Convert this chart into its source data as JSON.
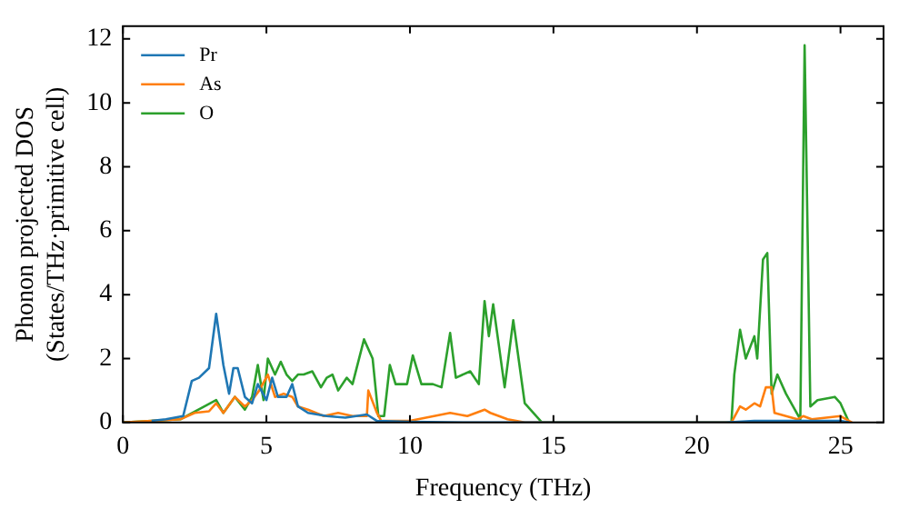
{
  "chart_data": {
    "type": "line",
    "xlabel": "Frequency (THz)",
    "ylabel": "Phonon projected DOS\n(States/THz·primitive cell)",
    "xlim": [
      0,
      26.5
    ],
    "ylim": [
      0,
      12.4
    ],
    "xticks": [
      0,
      5,
      10,
      15,
      20,
      25
    ],
    "yticks": [
      0,
      2,
      4,
      6,
      8,
      10,
      12
    ],
    "grid": false,
    "legend": "top left",
    "marker": "none",
    "line_style": "solid",
    "series": [
      {
        "name": "Pr",
        "color": "#1f77b4",
        "x": [
          1,
          1.5,
          2.1,
          2.4,
          2.65,
          3.0,
          3.25,
          3.5,
          3.7,
          3.85,
          4.0,
          4.25,
          4.5,
          4.7,
          5.0,
          5.2,
          5.4,
          5.7,
          5.9,
          6.1,
          6.45,
          7.1,
          7.75,
          8.5,
          8.85,
          10,
          12,
          21,
          22,
          23,
          24,
          25,
          25.3
        ],
        "values": [
          0.05,
          0.1,
          0.2,
          1.3,
          1.4,
          1.7,
          3.4,
          1.8,
          0.9,
          1.7,
          1.7,
          0.8,
          0.6,
          1.2,
          0.7,
          1.4,
          0.8,
          0.8,
          1.2,
          0.5,
          0.3,
          0.2,
          0.15,
          0.25,
          0.05,
          0.02,
          0,
          0,
          0.05,
          0.05,
          0.05,
          0.05,
          0
        ]
      },
      {
        "name": "As",
        "color": "#ff7f0e",
        "x": [
          0,
          2,
          2.5,
          3.0,
          3.25,
          3.5,
          3.9,
          4.25,
          4.5,
          4.75,
          5.05,
          5.3,
          5.6,
          5.9,
          6.1,
          6.45,
          7.0,
          7.5,
          8.0,
          8.5,
          8.55,
          8.85,
          9.0,
          10,
          11.4,
          12,
          12.6,
          12.8,
          13.4,
          14,
          21.2,
          21.5,
          21.7,
          22,
          22.2,
          22.4,
          22.6,
          22.7,
          23.5,
          23.7,
          24,
          25,
          25.4
        ],
        "values": [
          0,
          0.1,
          0.3,
          0.35,
          0.6,
          0.3,
          0.8,
          0.5,
          0.7,
          1.0,
          1.5,
          0.8,
          0.9,
          0.8,
          0.5,
          0.4,
          0.2,
          0.3,
          0.2,
          0.2,
          1.0,
          0.3,
          0.05,
          0.05,
          0.3,
          0.2,
          0.4,
          0.3,
          0.1,
          0,
          0,
          0.5,
          0.4,
          0.6,
          0.5,
          1.1,
          1.1,
          0.3,
          0.1,
          0.2,
          0.1,
          0.2,
          0
        ]
      },
      {
        "name": "O",
        "color": "#2ca02c",
        "x": [
          0,
          2,
          3.25,
          3.5,
          3.9,
          4.25,
          4.5,
          4.7,
          4.9,
          5.05,
          5.3,
          5.5,
          5.7,
          5.9,
          6.1,
          6.3,
          6.6,
          6.9,
          7.1,
          7.3,
          7.5,
          7.8,
          8.0,
          8.4,
          8.7,
          8.9,
          9.1,
          9.3,
          9.5,
          9.9,
          10.1,
          10.4,
          10.8,
          11.1,
          11.4,
          11.6,
          12.1,
          12.4,
          12.6,
          12.75,
          12.9,
          13.3,
          13.6,
          14,
          14.6,
          21.2,
          21.3,
          21.5,
          21.7,
          22.0,
          22.1,
          22.3,
          22.45,
          22.6,
          22.8,
          23.1,
          23.6,
          23.75,
          23.95,
          24.2,
          24.8,
          25.0,
          25.3
        ],
        "values": [
          0,
          0.1,
          0.7,
          0.3,
          0.8,
          0.4,
          0.8,
          1.8,
          0.7,
          2.0,
          1.5,
          1.9,
          1.5,
          1.3,
          1.5,
          1.5,
          1.6,
          1.1,
          1.4,
          1.5,
          1.0,
          1.4,
          1.2,
          2.6,
          2.0,
          0.2,
          0.2,
          1.8,
          1.2,
          1.2,
          2.1,
          1.2,
          1.2,
          1.1,
          2.8,
          1.4,
          1.6,
          1.2,
          3.8,
          2.7,
          3.7,
          1.1,
          3.2,
          0.6,
          0,
          0,
          1.5,
          2.9,
          2.0,
          2.7,
          2.0,
          5.1,
          5.3,
          0.9,
          1.5,
          0.9,
          0.1,
          11.8,
          0.5,
          0.7,
          0.8,
          0.6,
          0
        ]
      }
    ]
  }
}
